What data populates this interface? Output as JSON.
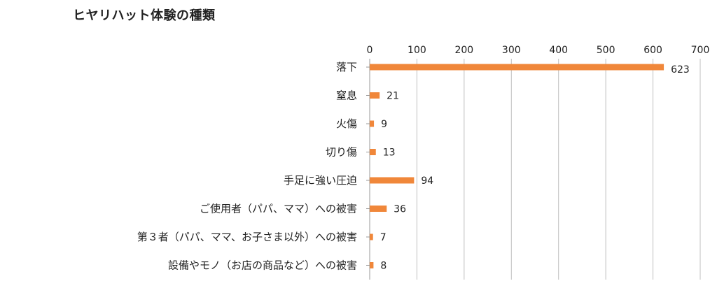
{
  "chart_data": {
    "type": "bar",
    "orientation": "horizontal",
    "title": "ヒヤリハット体験の種類",
    "categories": [
      "落下",
      "窒息",
      "火傷",
      "切り傷",
      "手足に強い圧迫",
      "ご使用者（パパ、ママ）への被害",
      "第３者（パパ、ママ、お子さま以外）への被害",
      "設備やモノ（お店の商品など）への被害"
    ],
    "values": [
      623,
      21,
      9,
      13,
      94,
      36,
      7,
      8
    ],
    "xlim": [
      0,
      700
    ],
    "xticks": [
      0,
      100,
      200,
      300,
      400,
      500,
      600,
      700
    ],
    "x_axis_position": "top",
    "grid": true,
    "bar_color": "#f0873a"
  }
}
